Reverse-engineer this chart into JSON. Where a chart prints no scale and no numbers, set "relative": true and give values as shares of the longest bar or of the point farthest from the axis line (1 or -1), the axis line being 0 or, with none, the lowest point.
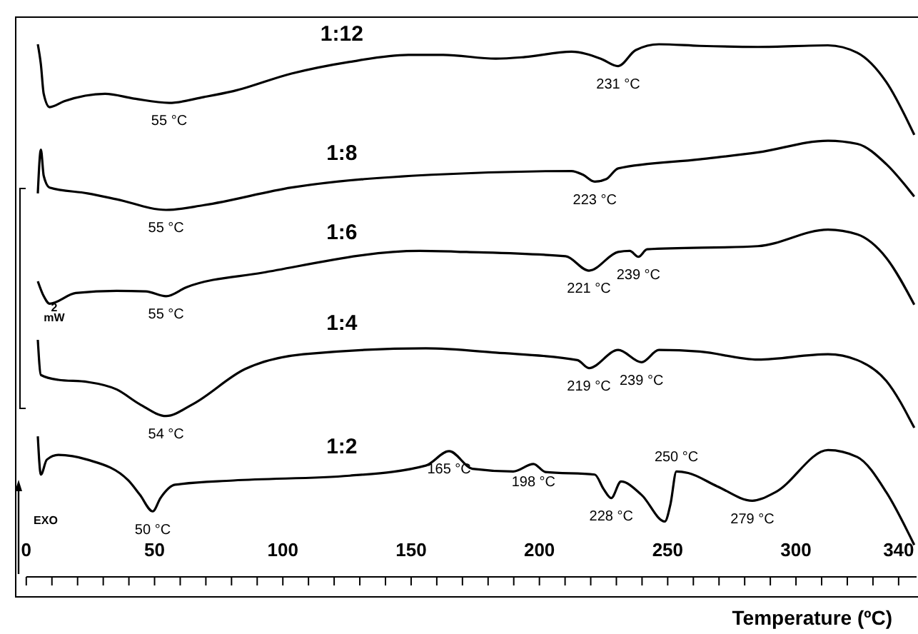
{
  "chart_data": {
    "type": "line",
    "relative": true,
    "xlabel": "Temperature (ºC)",
    "xlim": [
      0,
      347
    ],
    "xticks": [
      0,
      {
        "value": 10,
        "label": null
      },
      {
        "value": 20,
        "label": null
      },
      {
        "value": 30,
        "label": null
      },
      {
        "value": 40,
        "label": null
      },
      50,
      {
        "value": 60,
        "label": null
      },
      {
        "value": 70,
        "label": null
      },
      {
        "value": 80,
        "label": null
      },
      {
        "value": 90,
        "label": null
      },
      100,
      {
        "value": 110,
        "label": null
      },
      {
        "value": 120,
        "label": null
      },
      {
        "value": 130,
        "label": null
      },
      {
        "value": 140,
        "label": null
      },
      150,
      {
        "value": 160,
        "label": null
      },
      {
        "value": 170,
        "label": null
      },
      {
        "value": 180,
        "label": null
      },
      {
        "value": 190,
        "label": null
      },
      200,
      {
        "value": 210,
        "label": null
      },
      {
        "value": 220,
        "label": null
      },
      {
        "value": 230,
        "label": null
      },
      {
        "value": 240,
        "label": null
      },
      250,
      {
        "value": 260,
        "label": null
      },
      {
        "value": 270,
        "label": null
      },
      {
        "value": 280,
        "label": null
      },
      {
        "value": 290,
        "label": null
      },
      300,
      {
        "value": 310,
        "label": null
      },
      {
        "value": 320,
        "label": null
      },
      {
        "value": 330,
        "label": null
      },
      340
    ],
    "line_style": "solid",
    "marker": "none",
    "series": [
      {
        "name": "1:12",
        "color": "#000000",
        "x": [
          4.5,
          5.7,
          6.8,
          9.1,
          14.8,
          30.7,
          42,
          55.7,
          69.3,
          80.7,
          103.4,
          126.1,
          148.9,
          162.5,
          183,
          194.3,
          212.5,
          223.9,
          230.7,
          237.5,
          246.6,
          262.5,
          285.2,
          312.5,
          323.9,
          335.2,
          346.1
        ],
        "values": [
          1.0,
          0.962,
          0.907,
          0.882,
          0.893,
          0.907,
          0.898,
          0.89,
          0.901,
          0.912,
          0.945,
          0.967,
          0.98,
          0.98,
          0.973,
          0.976,
          0.986,
          0.973,
          0.959,
          0.989,
          1.0,
          0.997,
          0.995,
          0.998,
          0.984,
          0.929,
          0.83
        ]
      },
      {
        "name": "1:8",
        "color": "#000000",
        "x": [
          4.5,
          5.7,
          6.8,
          9.1,
          23.9,
          35.2,
          54.5,
          69.3,
          103.4,
          158,
          212.5,
          217,
          221.6,
          226.1,
          230.7,
          262.5,
          285.2,
          312.5,
          323.9,
          335.2,
          346.1
        ],
        "values": [
          0.72,
          0.802,
          0.753,
          0.731,
          0.72,
          0.709,
          0.689,
          0.698,
          0.731,
          0.755,
          0.762,
          0.755,
          0.742,
          0.747,
          0.767,
          0.784,
          0.797,
          0.819,
          0.813,
          0.775,
          0.714
        ]
      },
      {
        "name": "1:6",
        "color": "#000000",
        "x": [
          4.5,
          6.8,
          9.1,
          19.3,
          35.2,
          46.6,
          54.5,
          62.5,
          92,
          153.4,
          171.6,
          210.2,
          219.3,
          230.7,
          235.2,
          238.6,
          242,
          285.2,
          312.5,
          323.9,
          335.2,
          346.1
        ],
        "values": [
          0.555,
          0.527,
          0.513,
          0.533,
          0.537,
          0.536,
          0.527,
          0.544,
          0.571,
          0.612,
          0.61,
          0.602,
          0.575,
          0.61,
          0.612,
          0.601,
          0.615,
          0.621,
          0.652,
          0.643,
          0.599,
          0.511
        ]
      },
      {
        "name": "1:4",
        "color": "#000000",
        "x": [
          4.5,
          5.7,
          12.5,
          23.9,
          35.2,
          44.3,
          54.5,
          64.8,
          85.2,
          108,
          155.7,
          183,
          214.8,
          219.3,
          230.7,
          239.8,
          246.6,
          262.5,
          285.2,
          312.5,
          323.9,
          335.2,
          346.1
        ],
        "values": [
          0.445,
          0.379,
          0.37,
          0.366,
          0.352,
          0.324,
          0.302,
          0.324,
          0.39,
          0.418,
          0.429,
          0.421,
          0.407,
          0.392,
          0.426,
          0.403,
          0.426,
          0.423,
          0.408,
          0.418,
          0.407,
          0.368,
          0.28
        ]
      },
      {
        "name": "1:2",
        "color": "#000000",
        "x": [
          4.5,
          5.7,
          8,
          12.5,
          23.9,
          39.8,
          44.3,
          49.3,
          52.3,
          58,
          80.7,
          126.1,
          155.7,
          164.8,
          173.9,
          189.8,
          197.7,
          202.3,
          221.6,
          225,
          228,
          231.8,
          239.8,
          248.9,
          251.1,
          253.4,
          258,
          269.3,
          283,
          292,
          312.5,
          323.9,
          335.2,
          346.1
        ],
        "values": [
          0.264,
          0.192,
          0.22,
          0.229,
          0.22,
          0.181,
          0.154,
          0.123,
          0.148,
          0.173,
          0.181,
          0.19,
          0.209,
          0.236,
          0.203,
          0.198,
          0.212,
          0.197,
          0.192,
          0.165,
          0.148,
          0.179,
          0.154,
          0.104,
          0.137,
          0.198,
          0.195,
          0.17,
          0.143,
          0.159,
          0.238,
          0.225,
          0.159,
          0.06
        ]
      }
    ],
    "annotations": [
      {
        "text": "55 °C",
        "x": 55.7,
        "y": 0.89
      },
      {
        "text": "231 °C",
        "x": 230.7,
        "y": 0.959
      },
      {
        "text": "55 °C",
        "x": 54.5,
        "y": 0.689
      },
      {
        "text": "223 °C",
        "x": 221.6,
        "y": 0.742
      },
      {
        "text": "55 °C",
        "x": 54.5,
        "y": 0.527
      },
      {
        "text": "221 °C",
        "x": 219.3,
        "y": 0.575
      },
      {
        "text": "239 °C",
        "x": 238.6,
        "y": 0.601
      },
      {
        "text": "54 °C",
        "x": 54.5,
        "y": 0.302
      },
      {
        "text": "219 °C",
        "x": 219.3,
        "y": 0.392
      },
      {
        "text": "239 °C",
        "x": 239.8,
        "y": 0.403
      },
      {
        "text": "50 °C",
        "x": 49.3,
        "y": 0.123
      },
      {
        "text": "165 °C",
        "x": 164.8,
        "y": 0.236
      },
      {
        "text": "198 °C",
        "x": 197.7,
        "y": 0.212
      },
      {
        "text": "228 °C",
        "x": 228,
        "y": 0.148
      },
      {
        "text": "250 °C",
        "x": 253.4,
        "y": 0.198
      },
      {
        "text": "279 °C",
        "x": 283,
        "y": 0.143
      },
      "2 mW",
      "EXO"
    ]
  }
}
